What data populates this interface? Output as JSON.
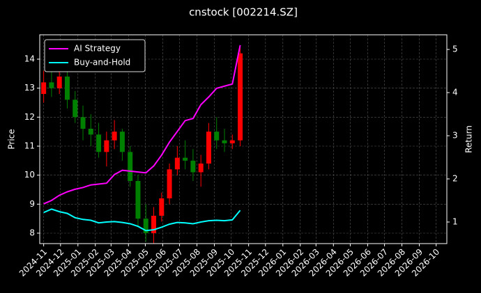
{
  "chart_data": {
    "type": "candlestick",
    "title": "cnstock [002214.SZ]",
    "ylabel": "Price",
    "y2label": "Return",
    "x": [
      "2024-11-01",
      "2024-11-15",
      "2024-11-29",
      "2024-12-13",
      "2024-12-27",
      "2025-01-10",
      "2025-01-24",
      "2025-02-07",
      "2025-02-21",
      "2025-03-07",
      "2025-03-21",
      "2025-04-04",
      "2025-04-18",
      "2025-05-02",
      "2025-05-16",
      "2025-05-30",
      "2025-06-13",
      "2025-06-27",
      "2025-07-11",
      "2025-07-25",
      "2025-08-08",
      "2025-08-22",
      "2025-09-05",
      "2025-09-19",
      "2025-10-03",
      "2025-10-17"
    ],
    "open": [
      12.8,
      13.2,
      13.0,
      13.4,
      12.6,
      12.0,
      11.6,
      11.4,
      10.8,
      11.2,
      11.5,
      10.8,
      9.8,
      8.5,
      8.0,
      8.6,
      9.2,
      10.2,
      10.6,
      10.5,
      10.1,
      10.4,
      11.5,
      11.2,
      11.1,
      11.2
    ],
    "high": [
      13.6,
      13.6,
      14.0,
      13.8,
      12.9,
      12.4,
      12.1,
      11.8,
      11.5,
      11.9,
      11.6,
      11.0,
      10.0,
      9.0,
      8.9,
      9.4,
      10.4,
      11.0,
      11.2,
      10.9,
      10.7,
      11.8,
      12.0,
      11.6,
      11.4,
      14.4
    ],
    "low": [
      12.5,
      12.7,
      12.8,
      12.3,
      11.8,
      11.2,
      11.0,
      10.6,
      10.3,
      10.9,
      10.5,
      9.6,
      8.2,
      7.7,
      7.6,
      8.4,
      9.0,
      10.0,
      10.2,
      9.8,
      9.6,
      10.2,
      10.9,
      10.8,
      10.9,
      11.0
    ],
    "close": [
      13.2,
      13.0,
      13.4,
      12.6,
      12.0,
      11.6,
      11.4,
      10.8,
      11.2,
      11.5,
      10.8,
      9.8,
      8.5,
      8.0,
      8.6,
      9.2,
      10.2,
      10.6,
      10.5,
      10.1,
      10.4,
      11.5,
      11.2,
      11.1,
      11.2,
      14.2
    ],
    "up_color": "#ff0000",
    "down_color": "#008000",
    "series": [
      {
        "name": "AI Strategy",
        "color": "#ff00ff",
        "axis": "y2",
        "values": [
          1.42,
          1.5,
          1.62,
          1.7,
          1.76,
          1.8,
          1.86,
          1.88,
          1.9,
          2.1,
          2.2,
          2.18,
          2.16,
          2.14,
          2.3,
          2.55,
          2.85,
          3.1,
          3.35,
          3.4,
          3.72,
          3.9,
          4.1,
          4.15,
          4.2,
          5.1
        ]
      },
      {
        "name": "Buy-and-Hold",
        "color": "#00ffff",
        "axis": "y2",
        "values": [
          1.22,
          1.3,
          1.24,
          1.2,
          1.1,
          1.06,
          1.04,
          0.98,
          1.0,
          1.01,
          0.99,
          0.96,
          0.9,
          0.8,
          0.82,
          0.88,
          0.95,
          0.99,
          0.98,
          0.96,
          1.0,
          1.03,
          1.04,
          1.03,
          1.05,
          1.27
        ]
      }
    ],
    "xlim": [
      "2024-10-25",
      "2026-10-20"
    ],
    "xticks": [
      {
        "value": "2024-11-01",
        "label": "2024-11"
      },
      {
        "value": "2024-12-01",
        "label": "2024-12"
      },
      {
        "value": "2025-01-01",
        "label": "2025-01"
      },
      {
        "value": "2025-02-01",
        "label": "2025-02"
      },
      {
        "value": "2025-03-01",
        "label": "2025-03"
      },
      {
        "value": "2025-04-01",
        "label": "2025-04"
      },
      {
        "value": "2025-05-01",
        "label": "2025-05"
      },
      {
        "value": "2025-06-01",
        "label": "2025-06"
      },
      {
        "value": "2025-07-01",
        "label": "2025-07"
      },
      {
        "value": "2025-08-01",
        "label": "2025-08"
      },
      {
        "value": "2025-09-01",
        "label": "2025-09"
      },
      {
        "value": "2025-10-01",
        "label": "2025-10"
      },
      {
        "value": "2025-11-01",
        "label": "2025-11"
      },
      {
        "value": "2025-12-01",
        "label": "2025-12"
      },
      {
        "value": "2026-01-01",
        "label": "2026-01"
      },
      {
        "value": "2026-02-01",
        "label": "2026-02"
      },
      {
        "value": "2026-03-01",
        "label": "2026-03"
      },
      {
        "value": "2026-04-01",
        "label": "2026-04"
      },
      {
        "value": "2026-05-01",
        "label": "2026-05"
      },
      {
        "value": "2026-06-01",
        "label": "2026-06"
      },
      {
        "value": "2026-07-01",
        "label": "2026-07"
      },
      {
        "value": "2026-08-01",
        "label": "2026-08"
      },
      {
        "value": "2026-09-01",
        "label": "2026-09"
      },
      {
        "value": "2026-10-01",
        "label": "2026-10"
      }
    ],
    "ylim": [
      7.64,
      14.84
    ],
    "yticks": [
      8,
      9,
      10,
      11,
      12,
      13,
      14
    ],
    "y2lim": [
      0.5,
      5.34
    ],
    "y2ticks": [
      1,
      2,
      3,
      4,
      5
    ],
    "grid": true,
    "legend": "upper left"
  }
}
